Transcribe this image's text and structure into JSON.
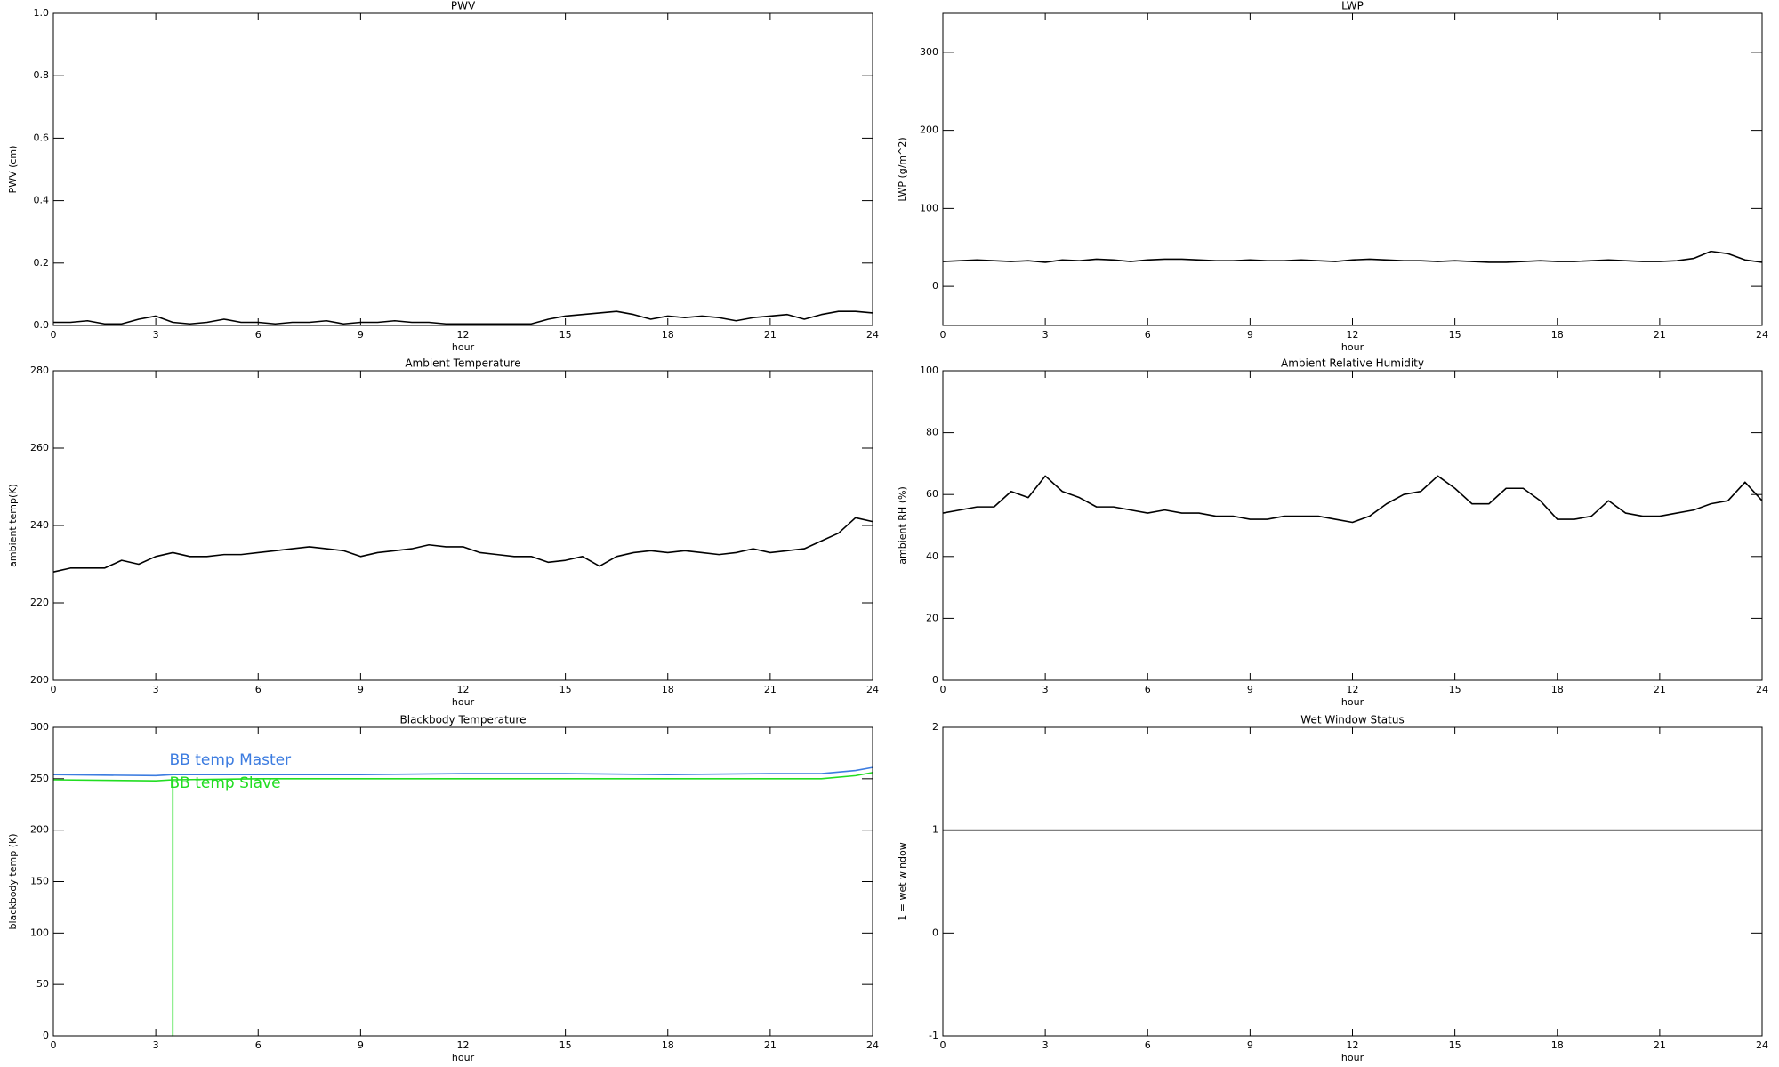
{
  "chart_data": [
    {
      "type": "line",
      "title": "PWV",
      "xlabel": "hour",
      "ylabel": "PWV (cm)",
      "x": [
        0,
        0.5,
        1,
        1.5,
        2,
        2.5,
        3,
        3.5,
        4,
        4.5,
        5,
        5.5,
        6,
        6.5,
        7,
        7.5,
        8,
        8.5,
        9,
        9.5,
        10,
        10.5,
        11,
        11.5,
        12,
        12.5,
        13,
        13.5,
        14,
        14.5,
        15,
        15.5,
        16,
        16.5,
        17,
        17.5,
        18,
        18.5,
        19,
        19.5,
        20,
        20.5,
        21,
        21.5,
        22,
        22.5,
        23,
        23.5,
        24
      ],
      "series": [
        {
          "name": "PWV",
          "color": "#000000",
          "values": [
            0.01,
            0.01,
            0.015,
            0.005,
            0.005,
            0.02,
            0.03,
            0.01,
            0.005,
            0.01,
            0.02,
            0.01,
            0.01,
            0.005,
            0.01,
            0.01,
            0.015,
            0.005,
            0.01,
            0.01,
            0.015,
            0.01,
            0.01,
            0.005,
            0.005,
            0.005,
            0.005,
            0.005,
            0.005,
            0.02,
            0.03,
            0.035,
            0.04,
            0.045,
            0.035,
            0.02,
            0.03,
            0.025,
            0.03,
            0.025,
            0.015,
            0.025,
            0.03,
            0.035,
            0.02,
            0.035,
            0.045,
            0.045,
            0.04
          ]
        }
      ],
      "xlim": [
        0,
        24
      ],
      "xticks": [
        0,
        3,
        6,
        9,
        12,
        15,
        18,
        21,
        24
      ],
      "ylim": [
        0,
        1
      ],
      "yticks": [
        {
          "value": 0,
          "label": "0.0"
        },
        0.2,
        0.4,
        0.6,
        0.8,
        {
          "value": 1,
          "label": "1.0"
        }
      ]
    },
    {
      "type": "line",
      "title": "LWP",
      "xlabel": "hour",
      "ylabel": "LWP (g/m^2)",
      "x": [
        0,
        0.5,
        1,
        1.5,
        2,
        2.5,
        3,
        3.5,
        4,
        4.5,
        5,
        5.5,
        6,
        6.5,
        7,
        7.5,
        8,
        8.5,
        9,
        9.5,
        10,
        10.5,
        11,
        11.5,
        12,
        12.5,
        13,
        13.5,
        14,
        14.5,
        15,
        15.5,
        16,
        16.5,
        17,
        17.5,
        18,
        18.5,
        19,
        19.5,
        20,
        20.5,
        21,
        21.5,
        22,
        22.5,
        23,
        23.5,
        24
      ],
      "series": [
        {
          "name": "LWP",
          "color": "#000000",
          "values": [
            32,
            33,
            34,
            33,
            32,
            33,
            31,
            34,
            33,
            35,
            34,
            32,
            34,
            35,
            35,
            34,
            33,
            33,
            34,
            33,
            33,
            34,
            33,
            32,
            34,
            35,
            34,
            33,
            33,
            32,
            33,
            32,
            31,
            31,
            32,
            33,
            32,
            32,
            33,
            34,
            33,
            32,
            32,
            33,
            36,
            45,
            42,
            34,
            31
          ]
        }
      ],
      "xlim": [
        0,
        24
      ],
      "xticks": [
        0,
        3,
        6,
        9,
        12,
        15,
        18,
        21,
        24
      ],
      "ylim": [
        -50,
        350
      ],
      "yticks": [
        0,
        100,
        200,
        300
      ]
    },
    {
      "type": "line",
      "title": "Ambient Temperature",
      "xlabel": "hour",
      "ylabel": "ambient temp(K)",
      "x": [
        0,
        0.5,
        1,
        1.5,
        2,
        2.5,
        3,
        3.5,
        4,
        4.5,
        5,
        5.5,
        6,
        6.5,
        7,
        7.5,
        8,
        8.5,
        9,
        9.5,
        10,
        10.5,
        11,
        11.5,
        12,
        12.5,
        13,
        13.5,
        14,
        14.5,
        15,
        15.5,
        16,
        16.5,
        17,
        17.5,
        18,
        18.5,
        19,
        19.5,
        20,
        20.5,
        21,
        21.5,
        22,
        22.5,
        23,
        23.5,
        24
      ],
      "series": [
        {
          "name": "ambient temp",
          "color": "#000000",
          "values": [
            228,
            229,
            229,
            229,
            231,
            230,
            232,
            233,
            232,
            232,
            232.5,
            232.5,
            233,
            233.5,
            234,
            234.5,
            234,
            233.5,
            232,
            233,
            233.5,
            234,
            235,
            234.5,
            234.5,
            233,
            232.5,
            232,
            232,
            230.5,
            231,
            232,
            229.5,
            232,
            233,
            233.5,
            233,
            233.5,
            233,
            232.5,
            233,
            234,
            233,
            233.5,
            234,
            236,
            238,
            242,
            241
          ]
        }
      ],
      "xlim": [
        0,
        24
      ],
      "xticks": [
        0,
        3,
        6,
        9,
        12,
        15,
        18,
        21,
        24
      ],
      "ylim": [
        200,
        280
      ],
      "yticks": [
        200,
        220,
        240,
        260,
        280
      ]
    },
    {
      "type": "line",
      "title": "Ambient Relative Humidity",
      "xlabel": "hour",
      "ylabel": "ambient RH (%)",
      "x": [
        0,
        0.5,
        1,
        1.5,
        2,
        2.5,
        3,
        3.5,
        4,
        4.5,
        5,
        5.5,
        6,
        6.5,
        7,
        7.5,
        8,
        8.5,
        9,
        9.5,
        10,
        10.5,
        11,
        11.5,
        12,
        12.5,
        13,
        13.5,
        14,
        14.5,
        15,
        15.5,
        16,
        16.5,
        17,
        17.5,
        18,
        18.5,
        19,
        19.5,
        20,
        20.5,
        21,
        21.5,
        22,
        22.5,
        23,
        23.5,
        24
      ],
      "series": [
        {
          "name": "ambient RH",
          "color": "#000000",
          "values": [
            54,
            55,
            56,
            56,
            61,
            59,
            66,
            61,
            59,
            56,
            56,
            55,
            54,
            55,
            54,
            54,
            53,
            53,
            52,
            52,
            53,
            53,
            53,
            52,
            51,
            53,
            57,
            60,
            61,
            66,
            62,
            57,
            57,
            62,
            62,
            58,
            52,
            52,
            53,
            58,
            54,
            53,
            53,
            54,
            55,
            57,
            58,
            64,
            58
          ]
        }
      ],
      "xlim": [
        0,
        24
      ],
      "xticks": [
        0,
        3,
        6,
        9,
        12,
        15,
        18,
        21,
        24
      ],
      "ylim": [
        0,
        100
      ],
      "yticks": [
        0,
        20,
        40,
        60,
        80,
        100
      ]
    },
    {
      "type": "line",
      "title": "Blackbody Temperature",
      "xlabel": "hour",
      "ylabel": "blackbody temp (K)",
      "x": [
        0,
        3,
        3.5,
        3.5,
        3.5,
        6,
        9,
        12,
        15,
        18,
        21,
        22.5,
        23.5,
        24
      ],
      "series": [
        {
          "name": "BB temp Master",
          "color": "#3c7ce0",
          "values": [
            254,
            253,
            254,
            254,
            254,
            254,
            254,
            255,
            255,
            254,
            255,
            255,
            258,
            261
          ]
        },
        {
          "name": "BB temp Slave",
          "color": "#22dd22",
          "values": [
            249,
            248,
            249,
            0,
            249,
            250,
            250,
            250,
            250,
            250,
            250,
            250,
            253,
            256
          ]
        }
      ],
      "xlim": [
        0,
        24
      ],
      "xticks": [
        0,
        3,
        6,
        9,
        12,
        15,
        18,
        21,
        24
      ],
      "ylim": [
        0,
        300
      ],
      "yticks": [
        0,
        50,
        100,
        150,
        200,
        250,
        300
      ]
    },
    {
      "type": "line",
      "title": "Wet Window Status",
      "xlabel": "hour",
      "ylabel": "1 = wet window",
      "x": [
        0,
        24
      ],
      "series": [
        {
          "name": "wet window",
          "color": "#000000",
          "values": [
            1,
            1
          ]
        }
      ],
      "xlim": [
        0,
        24
      ],
      "xticks": [
        0,
        3,
        6,
        9,
        12,
        15,
        18,
        21,
        24
      ],
      "ylim": [
        -1,
        2
      ],
      "yticks": [
        -1,
        0,
        1,
        2
      ]
    }
  ]
}
